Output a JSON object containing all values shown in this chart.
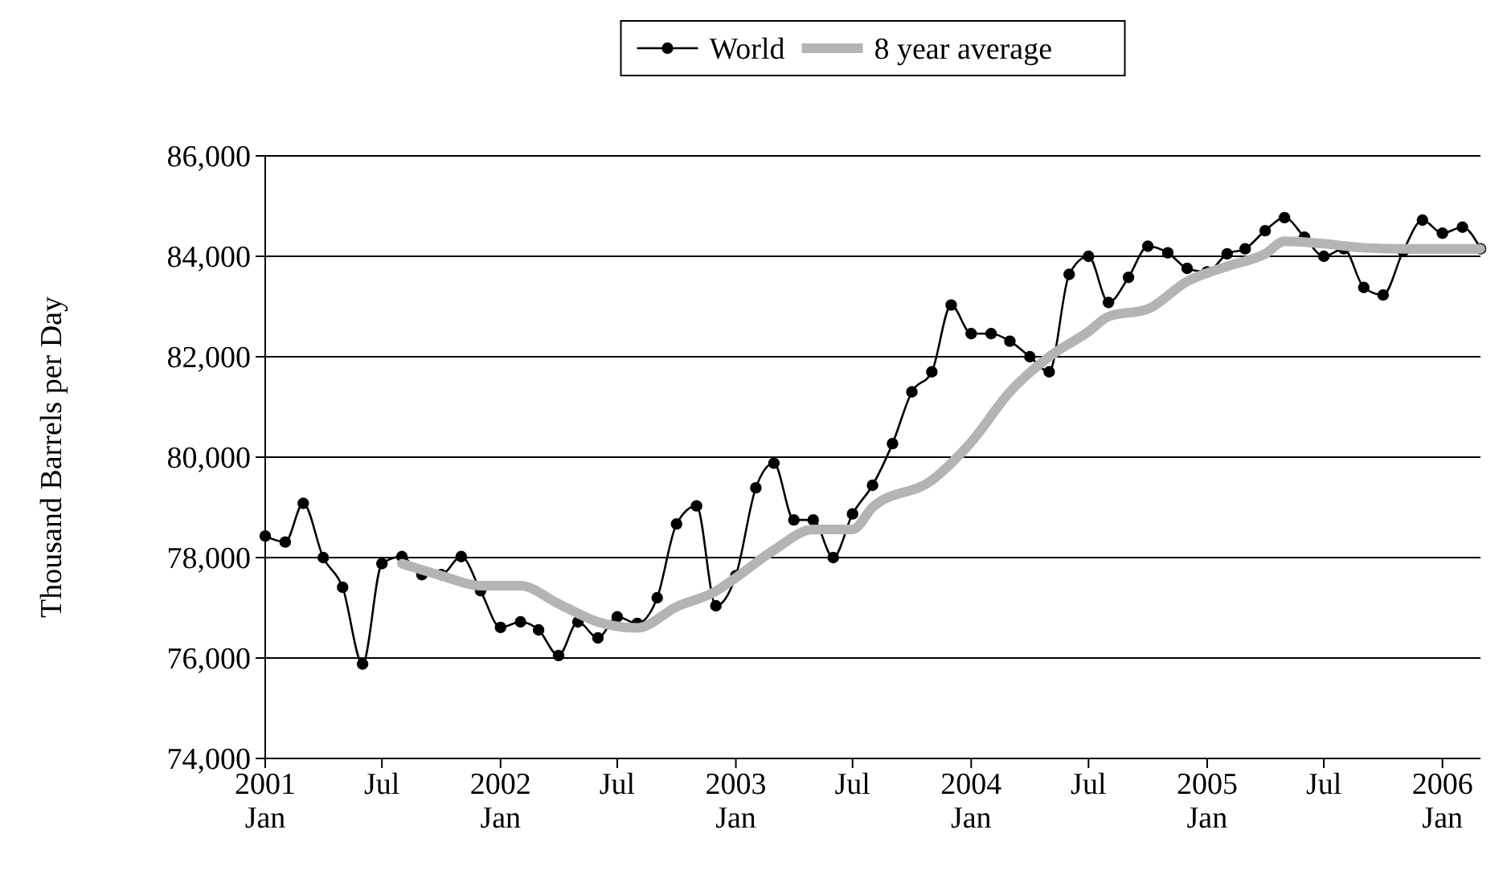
{
  "chart_data": {
    "type": "line",
    "ylabel": "Thousand Barrels per Day",
    "legend": "top",
    "grid": "y",
    "line_style": "solid",
    "x": [
      "2001-01",
      "2001-02",
      "2001-03",
      "2001-04",
      "2001-05",
      "2001-06",
      "2001-07",
      "2001-08",
      "2001-09",
      "2001-10",
      "2001-11",
      "2001-12",
      "2002-01",
      "2002-02",
      "2002-03",
      "2002-04",
      "2002-05",
      "2002-06",
      "2002-07",
      "2002-08",
      "2002-09",
      "2002-10",
      "2002-11",
      "2002-12",
      "2003-01",
      "2003-02",
      "2003-03",
      "2003-04",
      "2003-05",
      "2003-06",
      "2003-07",
      "2003-08",
      "2003-09",
      "2003-10",
      "2003-11",
      "2003-12",
      "2004-01",
      "2004-02",
      "2004-03",
      "2004-04",
      "2004-05",
      "2004-06",
      "2004-07",
      "2004-08",
      "2004-09",
      "2004-10",
      "2004-11",
      "2004-12",
      "2005-01",
      "2005-02",
      "2005-03",
      "2005-04",
      "2005-05",
      "2005-06",
      "2005-07",
      "2005-08",
      "2005-09",
      "2005-10",
      "2005-11",
      "2005-12",
      "2006-01",
      "2006-02",
      "2006-03"
    ],
    "xlim": [
      "2001-01",
      "2006-03"
    ],
    "xticks": [
      {
        "value": "2001-01",
        "label": "2001\nJan"
      },
      {
        "value": "2001-07",
        "label": "Jul"
      },
      {
        "value": "2002-01",
        "label": "2002\nJan"
      },
      {
        "value": "2002-07",
        "label": "Jul"
      },
      {
        "value": "2003-01",
        "label": "2003\nJan"
      },
      {
        "value": "2003-07",
        "label": "Jul"
      },
      {
        "value": "2004-01",
        "label": "2004\nJan"
      },
      {
        "value": "2004-07",
        "label": "Jul"
      },
      {
        "value": "2005-01",
        "label": "2005\nJan"
      },
      {
        "value": "2005-07",
        "label": "Jul"
      },
      {
        "value": "2006-01",
        "label": "2006\nJan"
      }
    ],
    "ylim": [
      74000,
      86000
    ],
    "yticks": [
      {
        "value": 74000,
        "label": "74,000"
      },
      {
        "value": 76000,
        "label": "76,000"
      },
      {
        "value": 78000,
        "label": "78,000"
      },
      {
        "value": 80000,
        "label": "80,000"
      },
      {
        "value": 82000,
        "label": "82,000"
      },
      {
        "value": 84000,
        "label": "84,000"
      },
      {
        "value": 86000,
        "label": "86,000"
      }
    ],
    "series": [
      {
        "name": "World",
        "color": "#000000",
        "marker": "circle",
        "values": [
          78430,
          78310,
          79080,
          78000,
          77410,
          75880,
          77880,
          78020,
          77660,
          77660,
          78020,
          77340,
          76610,
          76720,
          76560,
          76050,
          76720,
          76400,
          76820,
          76690,
          77200,
          78670,
          79030,
          77040,
          77640,
          79390,
          79880,
          78750,
          78750,
          78000,
          78870,
          79440,
          80270,
          81300,
          81700,
          83030,
          82460,
          82460,
          82310,
          82000,
          81700,
          83640,
          84000,
          83080,
          83580,
          84200,
          84070,
          83760,
          83690,
          84050,
          84150,
          84510,
          84770,
          84380,
          84000,
          84150,
          83380,
          83230,
          84100,
          84720,
          84460,
          84580,
          84150
        ]
      },
      {
        "name": "8 year average",
        "color": "#b4b4b4",
        "marker": "none",
        "x": [
          "2001-08",
          "2001-10",
          "2001-12",
          "2002-02",
          "2002-04",
          "2002-06",
          "2002-08",
          "2002-10",
          "2002-12",
          "2003-01",
          "2003-03",
          "2003-05",
          "2003-07",
          "2003-08",
          "2003-11",
          "2004-01",
          "2004-03",
          "2004-05",
          "2004-07",
          "2004-08",
          "2004-10",
          "2004-12",
          "2005-02",
          "2005-04",
          "2005-05",
          "2005-07",
          "2005-09",
          "2005-11",
          "2006-03"
        ],
        "values": [
          77880,
          77640,
          77440,
          77440,
          77080,
          76720,
          76600,
          77020,
          77330,
          77600,
          78150,
          78560,
          78560,
          79000,
          79540,
          80300,
          81300,
          82000,
          82500,
          82800,
          82950,
          83500,
          83800,
          84050,
          84300,
          84250,
          84170,
          84150,
          84150
        ]
      }
    ]
  }
}
